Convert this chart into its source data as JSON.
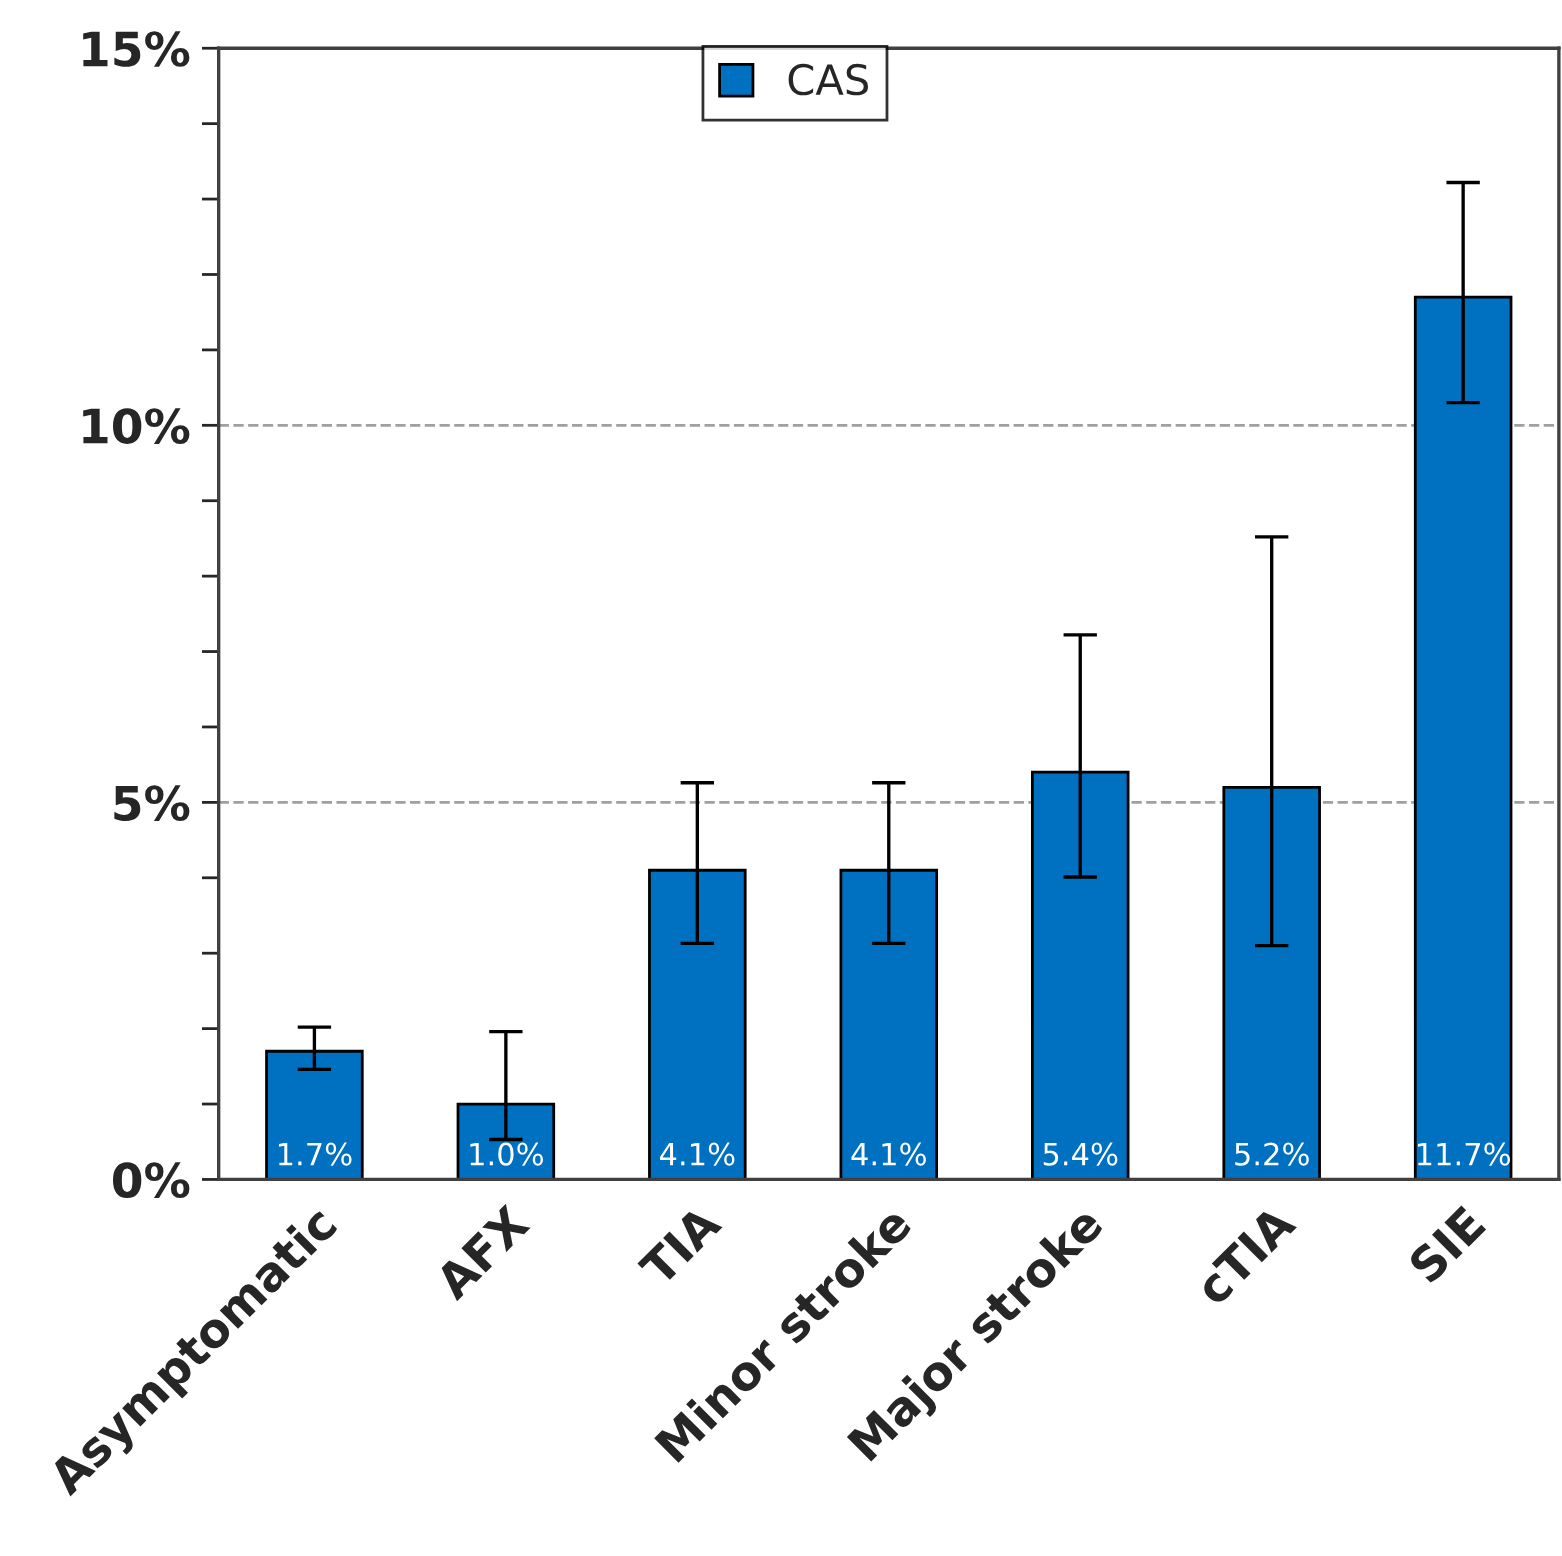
{
  "chart_data": {
    "type": "bar",
    "categories": [
      "Asymptomatic",
      "AFX",
      "TIA",
      "Minor stroke",
      "Major stroke",
      "cTIA",
      "SIE"
    ],
    "series": [
      {
        "name": "CAS",
        "color": "#0070c0",
        "values": [
          1.7,
          1.0,
          4.1,
          4.1,
          5.4,
          5.2,
          11.7
        ],
        "value_labels": [
          "1.7%",
          "1.0%",
          "4.1%",
          "4.1%",
          "5.4%",
          "5.2%",
          "11.7%"
        ],
        "errors": [
          [
            1.46,
            2.02
          ],
          [
            0.53,
            1.96
          ],
          [
            3.13,
            5.26
          ],
          [
            3.13,
            5.26
          ],
          [
            4.01,
            7.22
          ],
          [
            3.1,
            8.52
          ],
          [
            10.3,
            13.22
          ]
        ]
      }
    ],
    "ylim": [
      0,
      15
    ],
    "yticks": [
      {
        "value": 0,
        "label": "0%"
      },
      {
        "value": 1,
        "label": null
      },
      {
        "value": 2,
        "label": null
      },
      {
        "value": 3,
        "label": null
      },
      {
        "value": 4,
        "label": null
      },
      {
        "value": 5,
        "label": "5%"
      },
      {
        "value": 6,
        "label": null
      },
      {
        "value": 7,
        "label": null
      },
      {
        "value": 8,
        "label": null
      },
      {
        "value": 9,
        "label": null
      },
      {
        "value": 10,
        "label": "10%"
      },
      {
        "value": 11,
        "label": null
      },
      {
        "value": 12,
        "label": null
      },
      {
        "value": 13,
        "label": null
      },
      {
        "value": 14,
        "label": null
      },
      {
        "value": 15,
        "label": "15%"
      }
    ],
    "grid": "y",
    "legend": "top"
  }
}
